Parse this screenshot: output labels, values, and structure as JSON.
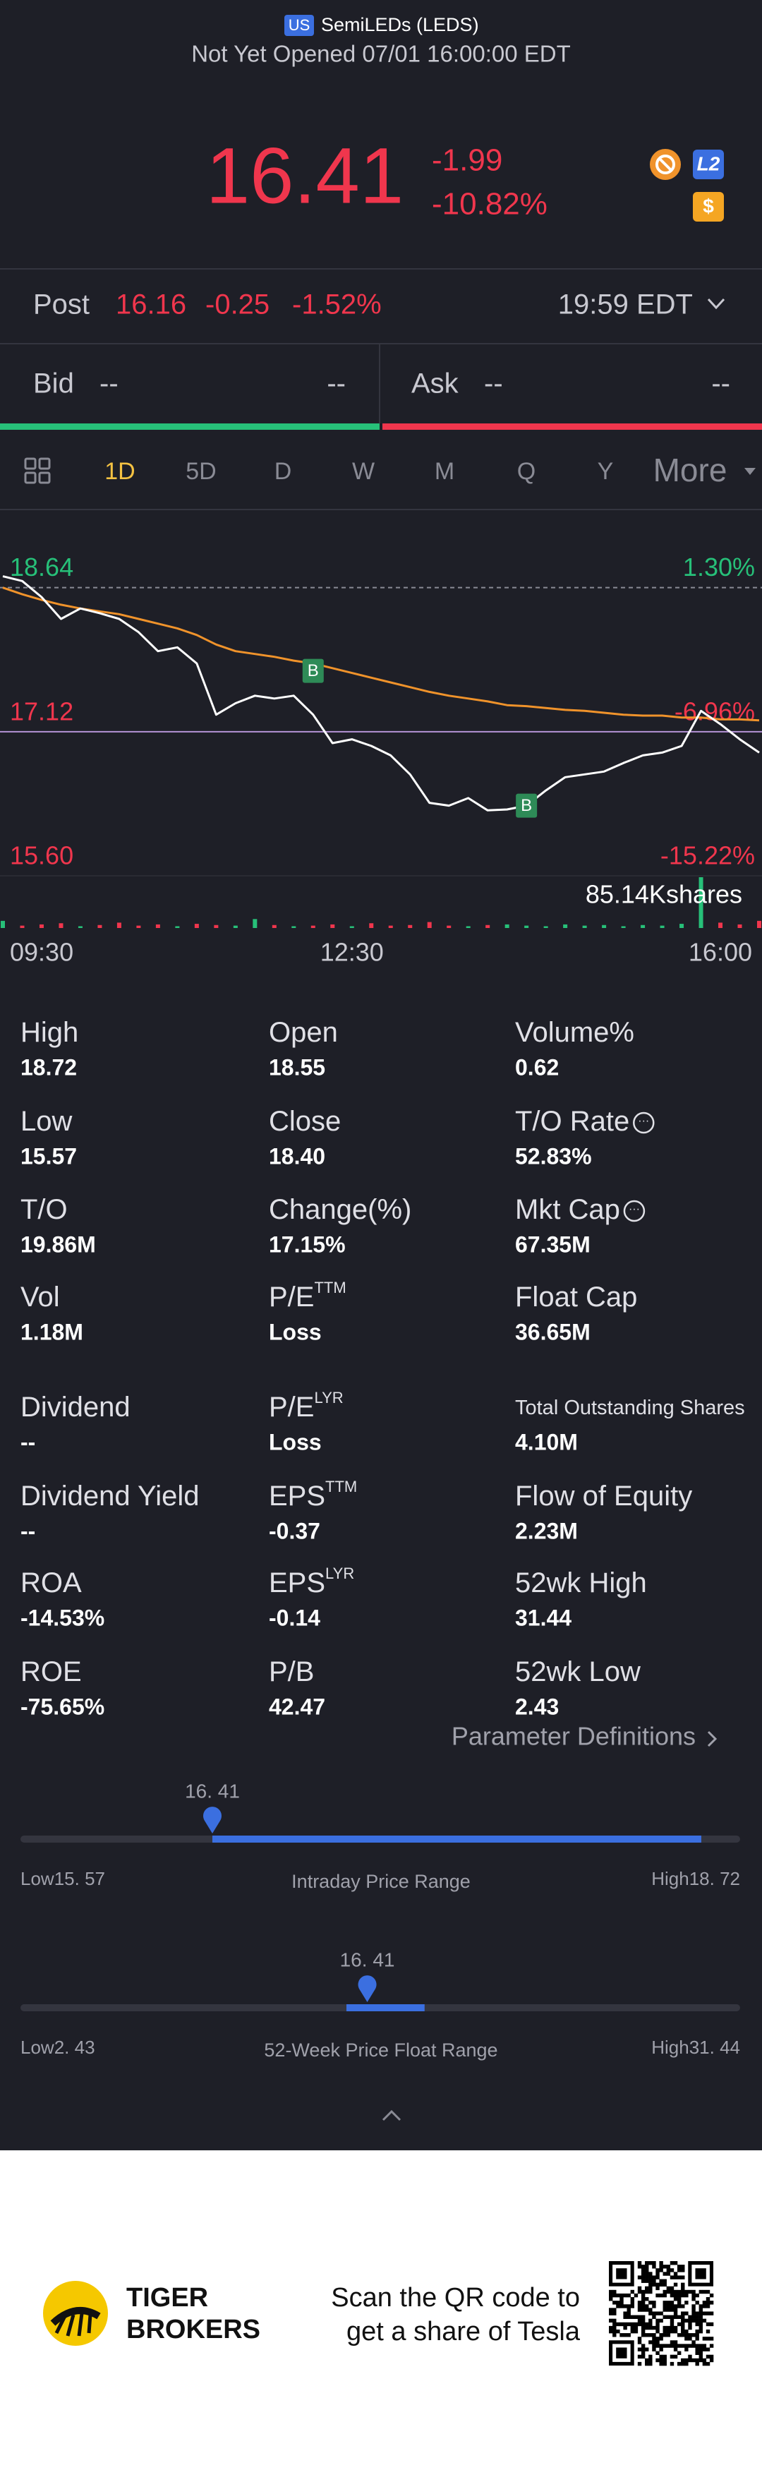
{
  "header": {
    "market": "US",
    "name": "SemiLEDs (LEDS)",
    "status": "Not Yet Opened 07/01 16:00:00 EDT"
  },
  "quote": {
    "price": "16.41",
    "change": "-1.99",
    "change_pct": "-10.82%",
    "badges": [
      "L2",
      "$"
    ]
  },
  "post": {
    "label": "Post",
    "price": "16.16",
    "change": "-0.25",
    "change_pct": "-1.52%",
    "time": "19:59 EDT"
  },
  "bid": {
    "label": "Bid",
    "price": "--",
    "size": "--"
  },
  "ask": {
    "label": "Ask",
    "price": "--",
    "size": "--"
  },
  "tabs": [
    "1D",
    "5D",
    "D",
    "W",
    "M",
    "Q",
    "Y",
    "More"
  ],
  "chart_data": {
    "type": "line",
    "x": [
      "09:30",
      "09:40",
      "09:50",
      "10:00",
      "10:10",
      "10:20",
      "10:30",
      "10:40",
      "10:50",
      "11:00",
      "11:10",
      "11:20",
      "11:30",
      "11:40",
      "11:50",
      "12:00",
      "12:10",
      "12:20",
      "12:30",
      "12:40",
      "12:50",
      "13:00",
      "13:10",
      "13:20",
      "13:30",
      "13:40",
      "13:50",
      "14:00",
      "14:10",
      "14:20",
      "14:30",
      "14:40",
      "14:50",
      "15:00",
      "15:10",
      "15:20",
      "15:30",
      "15:40",
      "15:50",
      "16:00"
    ],
    "series": [
      {
        "color": "#ffffff",
        "values": [
          18.76,
          18.71,
          18.54,
          18.31,
          18.42,
          18.37,
          18.31,
          18.17,
          17.97,
          18.01,
          17.84,
          17.3,
          17.42,
          17.5,
          17.47,
          17.5,
          17.3,
          17.0,
          17.04,
          16.97,
          16.87,
          16.67,
          16.37,
          16.34,
          16.42,
          16.29,
          16.3,
          16.34,
          16.5,
          16.64,
          16.67,
          16.7,
          16.79,
          16.87,
          16.9,
          16.97,
          17.34,
          17.2,
          17.04,
          16.9
        ]
      },
      {
        "color": "#f0932b",
        "values": [
          18.64,
          18.57,
          18.51,
          18.46,
          18.42,
          18.39,
          18.36,
          18.31,
          18.26,
          18.21,
          18.14,
          18.04,
          17.97,
          17.94,
          17.91,
          17.87,
          17.84,
          17.79,
          17.74,
          17.69,
          17.64,
          17.59,
          17.54,
          17.5,
          17.47,
          17.44,
          17.4,
          17.39,
          17.37,
          17.35,
          17.34,
          17.32,
          17.3,
          17.29,
          17.29,
          17.27,
          17.27,
          17.25,
          17.25,
          17.24
        ]
      }
    ],
    "ylim": [
      15.6,
      19.33
    ],
    "yticks": [
      18.64,
      17.12,
      {
        "value": 15.6,
        "label": "15.60"
      }
    ],
    "y2lim": [
      -15.22,
      5.05
    ],
    "y2ticks": [
      {
        "value": 1.3,
        "label": "1.30%"
      },
      {
        "value": -6.96,
        "label": "-6.96%"
      },
      {
        "value": -15.22,
        "label": "-15.22%"
      }
    ],
    "xticks": [
      "09:30",
      "12:30",
      "16:00"
    ],
    "up_color": "#27c079",
    "down_color": "#f0364d",
    "volume": {
      "values": [
        12,
        4,
        6,
        8,
        3,
        5,
        9,
        4,
        6,
        3,
        7,
        5,
        4,
        15,
        5,
        3,
        4,
        6,
        3,
        8,
        4,
        5,
        10,
        4,
        3,
        5,
        6,
        4,
        3,
        6,
        4,
        5,
        3,
        5,
        4,
        7,
        85.14,
        9,
        6,
        12
      ],
      "max": {
        "value": 85.14,
        "label": "85.14Kshares"
      }
    },
    "trade_markers": [
      "B",
      "B"
    ]
  },
  "stats": {
    "rows": [
      [
        {
          "label": "High",
          "value": "18.72"
        },
        {
          "label": "Open",
          "value": "18.55"
        },
        {
          "label": "Volume%",
          "value": "0.62"
        }
      ],
      [
        {
          "label": "Low",
          "value": "15.57"
        },
        {
          "label": "Close",
          "value": "18.40"
        },
        {
          "label": "T/O Rate",
          "value": "52.83%"
        }
      ],
      [
        {
          "label": "T/O",
          "value": "19.86M"
        },
        {
          "label": "Change(%)",
          "value": "17.15%"
        },
        {
          "label": "Mkt Cap",
          "value": "67.35M"
        }
      ],
      [
        {
          "label": "Vol",
          "value": "1.18M"
        },
        {
          "label": "P/E",
          "sup": "TTM",
          "value": "Loss"
        },
        {
          "label": "Float Cap",
          "value": "36.65M"
        }
      ],
      [
        {
          "label": "Dividend",
          "value": "--"
        },
        {
          "label": "P/E",
          "sup": "LYR",
          "value": "Loss"
        },
        {
          "label": "Total Outstanding Shares",
          "value": "4.10M"
        }
      ],
      [
        {
          "label": "Dividend Yield",
          "value": "--"
        },
        {
          "label": "EPS",
          "sup": "TTM",
          "value": "-0.37"
        },
        {
          "label": "Flow of Equity",
          "value": "2.23M"
        }
      ],
      [
        {
          "label": "ROA",
          "value": "-14.53%"
        },
        {
          "label": "EPS",
          "sup": "LYR",
          "value": "-0.14"
        },
        {
          "label": "52wk High",
          "value": "31.44"
        }
      ],
      [
        {
          "label": "ROE",
          "value": "-75.65%"
        },
        {
          "label": "P/B",
          "value": "42.47"
        },
        {
          "label": "52wk Low",
          "value": "2.43"
        }
      ]
    ]
  },
  "parameter_link": "Parameter Definitions",
  "ranges": [
    {
      "current": {
        "value": 16.41,
        "label": "16. 41"
      },
      "low_label": "Low",
      "low": {
        "value": 15.57,
        "label": "15. 57"
      },
      "title": "Intraday Price Range",
      "high_label": "High",
      "high": {
        "value": 18.72,
        "label": "18. 72"
      }
    },
    {
      "current": {
        "value": 16.41,
        "label": "16. 41"
      },
      "low_label": "Low",
      "low": {
        "value": 2.43,
        "label": "2. 43"
      },
      "title": "52-Week Price Float Range",
      "high_label": "High",
      "high": {
        "value": 31.44,
        "label": "31. 44"
      }
    }
  ],
  "footer": {
    "brand": [
      "TIGER",
      "BROKERS"
    ],
    "promo": [
      "Scan the QR code to",
      "get a share of Tesla"
    ]
  }
}
